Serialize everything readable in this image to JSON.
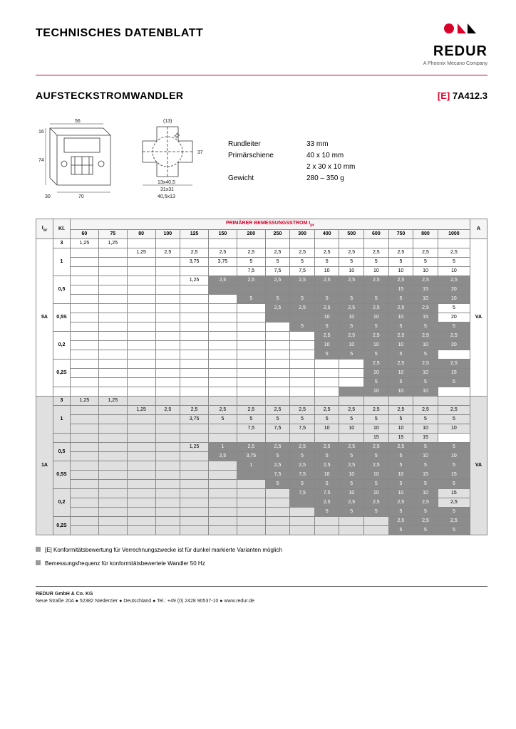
{
  "header": {
    "title": "TECHNISCHES DATENBLATT",
    "logo_name": "REDUR",
    "logo_subtitle": "A Phoenix Mecano Company",
    "logo_red": "#d9002a",
    "logo_black": "#000000"
  },
  "subtitle": {
    "text": "AUFSTECKSTROMWANDLER",
    "code_bracket": "[E]",
    "code": "7A412.3"
  },
  "diagram_labels": {
    "d1_56": "56",
    "d1_16": "16",
    "d1_74": "74",
    "d1_30": "30",
    "d1_70": "70",
    "d2_13": "(13)",
    "d2_33": "33",
    "d1_37": "37",
    "d2_13x40": "13x40,5",
    "d2_31x31": "31x31",
    "d2_40x13": "40,5x13"
  },
  "specs": {
    "rundleiter_label": "Rundleiter",
    "rundleiter_val": "33 mm",
    "primar_label": "Primärschiene",
    "primar_val1": "40 x 10 mm",
    "primar_val2": "2 x 30 x 10 mm",
    "gewicht_label": "Gewicht",
    "gewicht_val": "280 – 350 g"
  },
  "table": {
    "ratio_hdr": "I",
    "ratio_sub": "sr",
    "kl_hdr": "Kl.",
    "primary_hdr": "PRIMÄRER BEMESSUNGSSTROM I",
    "primary_sub": "pr",
    "a_hdr": "A",
    "va_hdr": "VA",
    "currents": [
      "60",
      "75",
      "80",
      "100",
      "125",
      "150",
      "200",
      "250",
      "300",
      "400",
      "500",
      "600",
      "750",
      "800",
      "1000"
    ],
    "group1_ratio": "5A",
    "group1_rows": [
      {
        "kl": "3",
        "v": [
          "1,25",
          "1,25",
          "",
          "",
          "",
          "",
          "",
          "",
          "",
          "",
          "",
          "",
          "",
          "",
          ""
        ],
        "span": 1,
        "sh": []
      },
      {
        "kl": "1",
        "v": [
          "",
          "",
          "1,25",
          "2,5",
          "2,5",
          "2,5",
          "2,5",
          "2,5",
          "2,5",
          "2,5",
          "2,5",
          "2,5",
          "2,5",
          "2,5",
          "2,5"
        ],
        "span": 3,
        "sh": []
      },
      {
        "kl": "",
        "v": [
          "",
          "",
          "",
          "",
          "3,75",
          "3,75",
          "5",
          "5",
          "5",
          "5",
          "5",
          "5",
          "5",
          "5",
          "5"
        ],
        "span": 0,
        "sh": []
      },
      {
        "kl": "",
        "v": [
          "",
          "",
          "",
          "",
          "",
          "",
          "7,5",
          "7,5",
          "7,5",
          "10",
          "10",
          "10",
          "10",
          "10",
          "10"
        ],
        "span": 0,
        "sh": []
      },
      {
        "kl": "0,5",
        "v": [
          "",
          "",
          "",
          "",
          "1,25",
          "2,5",
          "2,5",
          "2,5",
          "2,5",
          "2,5",
          "2,5",
          "2,5",
          "2,5",
          "2,5",
          "2,5"
        ],
        "span": 2,
        "sh": [
          5,
          6,
          7,
          8,
          9,
          10,
          11,
          12,
          13,
          14
        ],
        "extra": [
          "",
          "",
          "",
          "",
          "",
          "",
          "",
          "",
          "",
          "",
          "",
          "",
          "15",
          "15",
          "20"
        ]
      },
      {
        "kl": "",
        "v": [
          "",
          "",
          "",
          "",
          "",
          "",
          "5",
          "5",
          "5",
          "5",
          "5",
          "5",
          "5",
          "10",
          "10"
        ],
        "span": 0,
        "sh": [
          6,
          7,
          8,
          9,
          10,
          11,
          12,
          13,
          14
        ]
      },
      {
        "kl": "0,5S",
        "v": [
          "",
          "",
          "",
          "",
          "",
          "",
          "",
          "2,5",
          "2,5",
          "2,5",
          "2,5",
          "2,5",
          "2,5",
          "2,5",
          "5"
        ],
        "span": 2,
        "sh": [
          7,
          8,
          9,
          10,
          11,
          12,
          13
        ],
        "extra": [
          "",
          "",
          "",
          "",
          "",
          "",
          "",
          "",
          "",
          "10",
          "10",
          "10",
          "10",
          "15",
          "20"
        ]
      },
      {
        "kl": "",
        "v": [
          "",
          "",
          "",
          "",
          "",
          "",
          "",
          "",
          "5",
          "5",
          "5",
          "5",
          "5",
          "5",
          "5"
        ],
        "span": 0,
        "sh": [
          8,
          9,
          10,
          11,
          12,
          13,
          14
        ]
      },
      {
        "kl": "0,2",
        "v": [
          "",
          "",
          "",
          "",
          "",
          "",
          "",
          "",
          "",
          "2,5",
          "2,5",
          "2,5",
          "2,5",
          "2,5",
          "2,5"
        ],
        "span": 2,
        "sh": [
          9,
          10,
          11,
          12,
          13,
          14
        ],
        "extra": [
          "",
          "",
          "",
          "",
          "",
          "",
          "",
          "",
          "",
          "10",
          "10",
          "10",
          "10",
          "10",
          "20"
        ]
      },
      {
        "kl": "",
        "v": [
          "",
          "",
          "",
          "",
          "",
          "",
          "",
          "",
          "",
          "5",
          "5",
          "5",
          "5",
          "5",
          ""
        ],
        "span": 0,
        "sh": [
          9,
          10,
          11,
          12,
          13
        ]
      },
      {
        "kl": "0,2S",
        "v": [
          "",
          "",
          "",
          "",
          "",
          "",
          "",
          "",
          "",
          "",
          "",
          "2,5",
          "2,5",
          "2,5",
          "2,5"
        ],
        "span": 2,
        "sh": [
          11,
          12,
          13,
          14
        ],
        "extra": [
          "",
          "",
          "",
          "",
          "",
          "",
          "",
          "",
          "",
          "",
          "",
          "10",
          "10",
          "10",
          "15"
        ]
      },
      {
        "kl": "",
        "v": [
          "",
          "",
          "",
          "",
          "",
          "",
          "",
          "",
          "",
          "",
          "",
          "5",
          "5",
          "5",
          "5"
        ],
        "span": 0,
        "sh": [
          11,
          12,
          13,
          14
        ],
        "extra2": [
          "",
          "",
          "",
          "",
          "",
          "",
          "",
          "",
          "",
          "",
          "",
          "",
          "10",
          "10",
          "10"
        ]
      }
    ],
    "group2_ratio": "1A",
    "group2_rows": [
      {
        "kl": "3",
        "v": [
          "1,25",
          "1,25",
          "",
          "",
          "",
          "",
          "",
          "",
          "",
          "",
          "",
          "",
          "",
          "",
          ""
        ],
        "span": 1,
        "sh": [],
        "bg": "light"
      },
      {
        "kl": "1",
        "v": [
          "",
          "",
          "1,25",
          "2,5",
          "2,5",
          "2,5",
          "2,5",
          "2,5",
          "2,5",
          "2,5",
          "2,5",
          "2,5",
          "2,5",
          "2,5",
          "2,5"
        ],
        "span": 3,
        "sh": [],
        "bg": "light"
      },
      {
        "kl": "",
        "v": [
          "",
          "",
          "",
          "",
          "3,75",
          "5",
          "5",
          "5",
          "5",
          "5",
          "5",
          "5",
          "5",
          "5",
          "5"
        ],
        "span": 0,
        "sh": [],
        "bg": "light"
      },
      {
        "kl": "",
        "v": [
          "",
          "",
          "",
          "",
          "",
          "",
          "7,5",
          "7,5",
          "7,5",
          "10",
          "10",
          "10",
          "10",
          "10",
          "10"
        ],
        "span": 0,
        "sh": [],
        "bg": "light",
        "extra": [
          "",
          "",
          "",
          "",
          "",
          "",
          "",
          "",
          "",
          "",
          "",
          "",
          "15",
          "15",
          "15"
        ]
      },
      {
        "kl": "0,5",
        "v": [
          "",
          "",
          "",
          "",
          "1,25",
          "1",
          "2,5",
          "2,5",
          "2,5",
          "2,5",
          "2,5",
          "2,5",
          "2,5",
          "5",
          "5"
        ],
        "span": 2,
        "sh": [
          5,
          6,
          7,
          8,
          9,
          10,
          11,
          12,
          13,
          14
        ],
        "bg": "light"
      },
      {
        "kl": "",
        "v": [
          "",
          "",
          "",
          "",
          "",
          "2,5",
          "3,75",
          "5",
          "5",
          "5",
          "5",
          "5",
          "5",
          "10",
          "10"
        ],
        "span": 0,
        "sh": [
          5,
          6,
          7,
          8,
          9,
          10,
          11,
          12,
          13,
          14
        ],
        "bg": "light"
      },
      {
        "kl": "0,5S",
        "v": [
          "",
          "",
          "",
          "",
          "",
          "",
          "1",
          "2,5",
          "2,5",
          "2,5",
          "2,5",
          "2,5",
          "5",
          "5",
          "5"
        ],
        "span": 2,
        "sh": [
          6,
          7,
          8,
          9,
          10,
          11,
          12,
          13,
          14
        ],
        "bg": "light",
        "extra": [
          "",
          "",
          "",
          "",
          "",
          "",
          "",
          "7,5",
          "7,5",
          "10",
          "10",
          "10",
          "10",
          "15",
          "15"
        ]
      },
      {
        "kl": "",
        "v": [
          "",
          "",
          "",
          "",
          "",
          "",
          "",
          "5",
          "5",
          "5",
          "5",
          "5",
          "5",
          "5",
          "5"
        ],
        "span": 0,
        "sh": [
          7,
          8,
          9,
          10,
          11,
          12,
          13,
          14
        ],
        "bg": "light"
      },
      {
        "kl": "0,2",
        "v": [
          "",
          "",
          "",
          "",
          "",
          "",
          "",
          "",
          "7,5",
          "7,5",
          "10",
          "10",
          "10",
          "10",
          "15"
        ],
        "span": 2,
        "sh": [
          8,
          9,
          10,
          11,
          12,
          13
        ],
        "bg": "light",
        "extra": [
          "",
          "",
          "",
          "",
          "",
          "",
          "",
          "",
          "",
          "2,5",
          "2,5",
          "2,5",
          "2,5",
          "2,5",
          "2,5"
        ]
      },
      {
        "kl": "",
        "v": [
          "",
          "",
          "",
          "",
          "",
          "",
          "",
          "",
          "",
          "5",
          "5",
          "5",
          "5",
          "5",
          "5"
        ],
        "span": 0,
        "sh": [
          9,
          10,
          11,
          12,
          13,
          14
        ],
        "bg": "light"
      },
      {
        "kl": "0,2S",
        "v": [
          "",
          "",
          "",
          "",
          "",
          "",
          "",
          "",
          "",
          "",
          "",
          "",
          "2,5",
          "2,5",
          "2,5"
        ],
        "span": 2,
        "sh": [
          12,
          13,
          14
        ],
        "bg": "light"
      },
      {
        "kl": "",
        "v": [
          "",
          "",
          "",
          "",
          "",
          "",
          "",
          "",
          "",
          "",
          "",
          "",
          "5",
          "5",
          "5"
        ],
        "span": 0,
        "sh": [
          12,
          13,
          14
        ],
        "bg": "light"
      }
    ]
  },
  "notes": {
    "n1": "[E] Konformitätsbewertung für Verrechnungszwecke ist für dunkel markierte Varianten möglich",
    "n2": "Bemessungsfrequenz für konformitätsbewertete Wandler 50 Hz"
  },
  "footer": {
    "line1": "REDUR GmbH & Co. KG",
    "line2": "Neue Straße 20A ● 52382 Niederzier ● Deutschland ● Tel.: +49 (0) 2428 90537-10 ● www.redur.de"
  }
}
